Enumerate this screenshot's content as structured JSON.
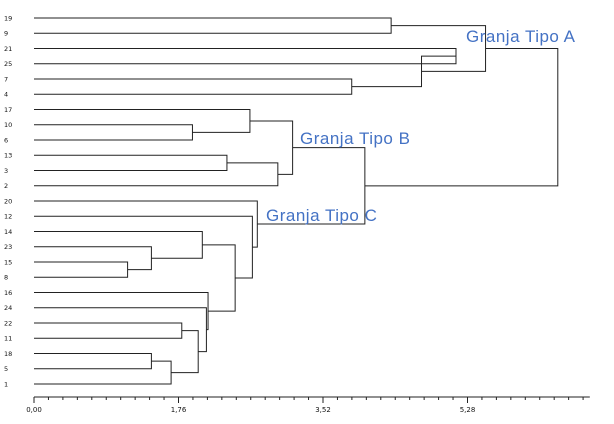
{
  "dendrogram": {
    "leaves": [
      "19",
      "9",
      "21",
      "25",
      "7",
      "4",
      "17",
      "10",
      "6",
      "13",
      "3",
      "2",
      "20",
      "12",
      "14",
      "23",
      "15",
      "8",
      "16",
      "24",
      "22",
      "11",
      "18",
      "5",
      "1"
    ],
    "axis": {
      "ticks": [
        {
          "label": "0,00",
          "value": 0.0
        },
        {
          "label": "1,76",
          "value": 1.76
        },
        {
          "label": "3,52",
          "value": 3.52
        },
        {
          "label": "5,28",
          "value": 5.28
        }
      ],
      "max": 6.77
    },
    "merges": [
      {
        "a": "19",
        "b": "9",
        "h": 4.35
      },
      {
        "a": "15",
        "b": "8",
        "h": 1.14
      },
      {
        "a": "10",
        "b": "6",
        "h": 1.93
      },
      {
        "a": "18",
        "b": "5",
        "h": 1.43
      },
      {
        "a": "13",
        "b": "3",
        "h": 2.35
      },
      {
        "a": "7",
        "b": "4",
        "h": 3.87
      },
      {
        "a": "23",
        "b": "15+8",
        "h": 1.43
      },
      {
        "a": "17",
        "b": "10+6",
        "h": 2.63
      },
      {
        "a": "13+3",
        "b": "2",
        "h": 2.97
      },
      {
        "a": "18+5",
        "b": "1",
        "h": 1.67
      },
      {
        "a": "14",
        "b": "23+15+8",
        "h": 2.05
      },
      {
        "a": "22",
        "b": "11",
        "h": 1.8
      },
      {
        "a": "22+11",
        "b": "18+5+1",
        "h": 2.0
      },
      {
        "a": "24",
        "b": "22+11+18+5+1",
        "h": 2.1
      },
      {
        "a": "16",
        "b": "24+22+11+18+5+1",
        "h": 2.12
      },
      {
        "a": "14+23+15+8",
        "b": "16+24+22+11+18+5+1",
        "h": 2.45
      },
      {
        "a": "12",
        "b": "14+23+15+8+16+24+22+11+18+5+1",
        "h": 2.66
      },
      {
        "a": "20",
        "b": "12+14+23+15+8+16+24+22+11+18+5+1",
        "h": 2.72
      },
      {
        "a": "17+10+6",
        "b": "13+3+2",
        "h": 3.15
      },
      {
        "a": "17+10+6+13+3+2",
        "b": "20+12+14+23+15+8+16+24+22+11+18+5+1",
        "h": 4.03
      },
      {
        "a": "21",
        "b": "25",
        "h": 5.14
      },
      {
        "a": "21+25",
        "b": "7+4",
        "h": 4.72
      },
      {
        "a": "19+9",
        "b": "21+25+7+4",
        "h": 5.5
      },
      {
        "a": "19+9+21+25+7+4",
        "b": "17+10+6+13+3+2+20+12+14+23+15+8+16+24+22+11+18+5+1",
        "h": 6.38
      }
    ],
    "groups": [
      {
        "label": "Granja Tipo A"
      },
      {
        "label": "Granja Tipo B"
      },
      {
        "label": "Granja Tipo C"
      }
    ]
  }
}
